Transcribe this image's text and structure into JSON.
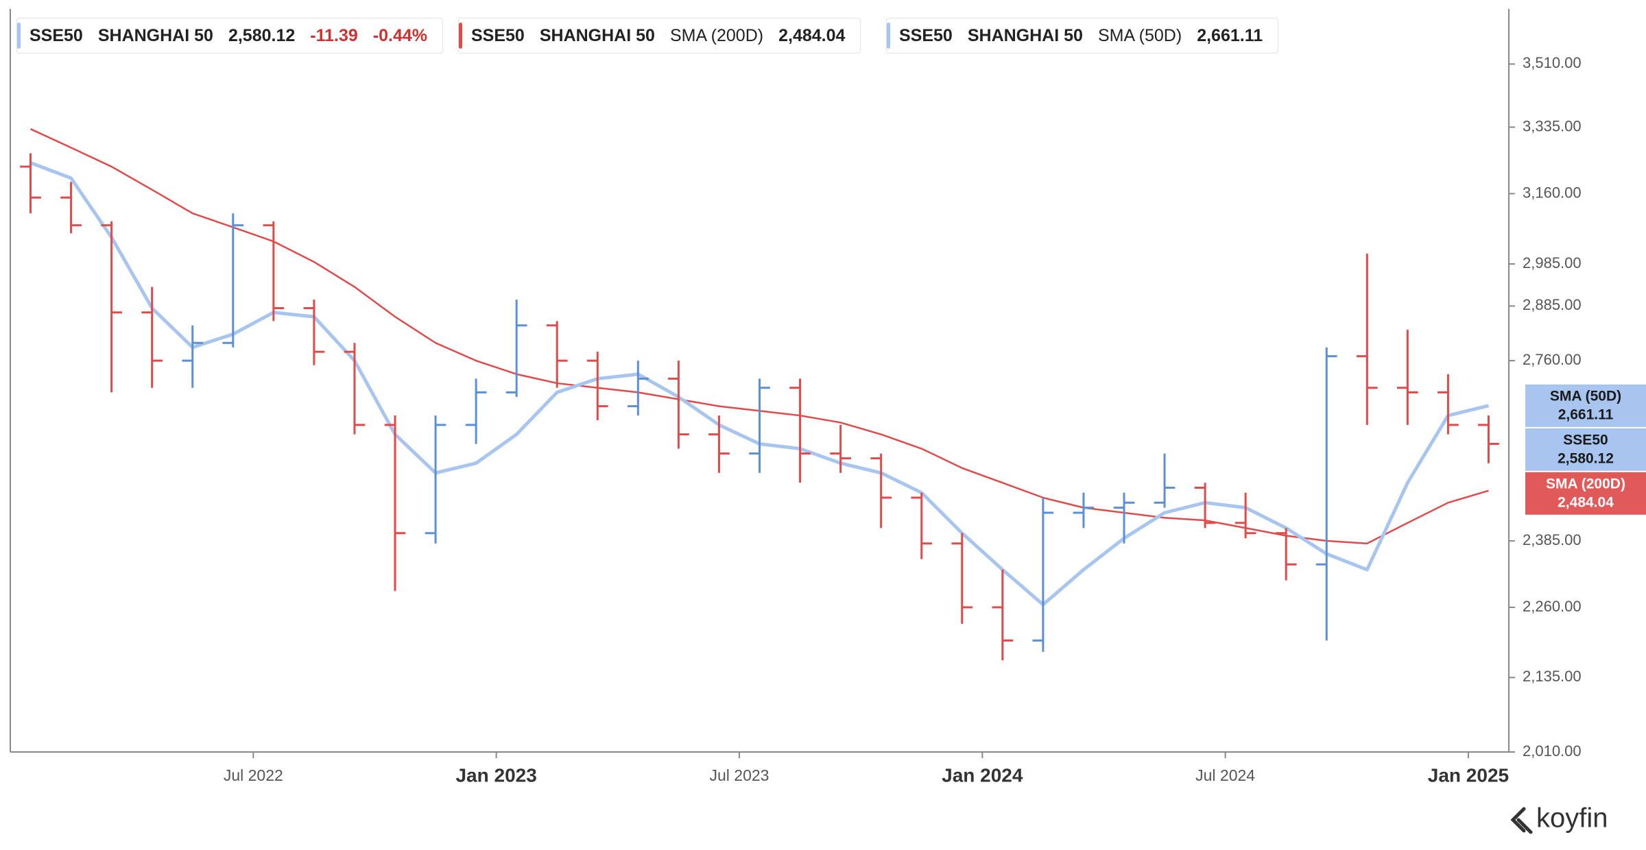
{
  "chart_data": {
    "type": "ohlc",
    "log_scale": true,
    "x": [
      "2022-01",
      "2022-02",
      "2022-03",
      "2022-04",
      "2022-05",
      "2022-06",
      "2022-07",
      "2022-08",
      "2022-09",
      "2022-10",
      "2022-11",
      "2022-12",
      "2023-01",
      "2023-02",
      "2023-03",
      "2023-04",
      "2023-05",
      "2023-06",
      "2023-07",
      "2023-08",
      "2023-09",
      "2023-10",
      "2023-11",
      "2023-12",
      "2024-01",
      "2024-02",
      "2024-03",
      "2024-04",
      "2024-05",
      "2024-06",
      "2024-07",
      "2024-08",
      "2024-09",
      "2024-10",
      "2024-11",
      "2024-12",
      "2025-01"
    ],
    "xlim": [
      "2022-01",
      "2025-02"
    ],
    "xticks": [
      {
        "value": "2022-07",
        "label": "Jul 2022"
      },
      {
        "value": "2023-01",
        "label": "Jan 2023"
      },
      {
        "value": "2023-07",
        "label": "Jul 2023"
      },
      {
        "value": "2024-01",
        "label": "Jan 2024"
      },
      {
        "value": "2024-07",
        "label": "Jul 2024"
      },
      {
        "value": "2025-01",
        "label": "Jan 2025"
      }
    ],
    "ylim": [
      2010,
      3650
    ],
    "yticks": [
      {
        "value": 2010,
        "label": "2,010.00"
      },
      {
        "value": 2135,
        "label": "2,135.00"
      },
      {
        "value": 2260,
        "label": "2,260.00"
      },
      {
        "value": 2385,
        "label": "2,385.00"
      },
      {
        "value": 2760,
        "label": "2,760.00"
      },
      {
        "value": 2885,
        "label": "2,885.00"
      },
      {
        "value": 2985,
        "label": "2,985.00"
      },
      {
        "value": 3160,
        "label": "3,160.00"
      },
      {
        "value": 3335,
        "label": "3,335.00"
      },
      {
        "value": 3510,
        "label": "3,510.00"
      }
    ],
    "up_color": "#5b8fd6",
    "down_color": "#e04a4a",
    "series": [
      {
        "name": "SSE50",
        "full_name": "SHANGHAI 50",
        "color": "#a8c5f0",
        "open": [
          3230,
          3150,
          3080,
          2870,
          2760,
          2800,
          3080,
          2880,
          2780,
          2620,
          2400,
          2620,
          2690,
          2840,
          2760,
          2660,
          2720,
          2600,
          2560,
          2700,
          2560,
          2550,
          2470,
          2380,
          2260,
          2200,
          2440,
          2450,
          2460,
          2490,
          2420,
          2400,
          2340,
          2770,
          2700,
          2690,
          2620
        ],
        "high": [
          3265,
          3190,
          3090,
          2930,
          2840,
          3110,
          3090,
          2900,
          2800,
          2640,
          2640,
          2720,
          2900,
          2850,
          2780,
          2760,
          2760,
          2640,
          2720,
          2720,
          2620,
          2560,
          2480,
          2400,
          2330,
          2470,
          2480,
          2480,
          2560,
          2500,
          2480,
          2410,
          2790,
          3010,
          2830,
          2730,
          2640
        ],
        "low": [
          3110,
          3060,
          2690,
          2700,
          2700,
          2790,
          2850,
          2750,
          2600,
          2290,
          2380,
          2580,
          2680,
          2700,
          2630,
          2640,
          2570,
          2520,
          2520,
          2500,
          2520,
          2410,
          2350,
          2230,
          2165,
          2180,
          2410,
          2380,
          2450,
          2410,
          2390,
          2310,
          2200,
          2620,
          2620,
          2600,
          2540
        ],
        "close": [
          3150,
          3080,
          2870,
          2760,
          2800,
          3080,
          2880,
          2780,
          2620,
          2400,
          2620,
          2690,
          2840,
          2760,
          2660,
          2720,
          2600,
          2560,
          2700,
          2560,
          2550,
          2470,
          2380,
          2260,
          2200,
          2440,
          2450,
          2460,
          2490,
          2420,
          2400,
          2340,
          2770,
          2700,
          2690,
          2620,
          2580.12
        ],
        "last_label": "2,580.12",
        "change": -11.39,
        "change_pct": "-0.44%"
      },
      {
        "name": "SMA (200D)",
        "color": "#e04a4a",
        "values": [
          3330,
          3280,
          3230,
          3170,
          3110,
          3075,
          3040,
          2990,
          2930,
          2860,
          2800,
          2760,
          2730,
          2710,
          2700,
          2690,
          2675,
          2660,
          2650,
          2640,
          2625,
          2600,
          2570,
          2530,
          2500,
          2470,
          2450,
          2440,
          2430,
          2425,
          2410,
          2395,
          2385,
          2380,
          2420,
          2460,
          2484.04
        ],
        "last_label": "2,484.04"
      },
      {
        "name": "SMA (50D)",
        "color": "#a8c5f0",
        "values": [
          3240,
          3200,
          3050,
          2880,
          2790,
          2820,
          2870,
          2860,
          2760,
          2600,
          2520,
          2540,
          2600,
          2690,
          2720,
          2730,
          2680,
          2620,
          2580,
          2570,
          2540,
          2520,
          2480,
          2400,
          2330,
          2265,
          2330,
          2390,
          2440,
          2460,
          2450,
          2410,
          2360,
          2330,
          2500,
          2640,
          2661.11
        ],
        "last_label": "2,661.11"
      }
    ],
    "brand": "koyfin"
  }
}
